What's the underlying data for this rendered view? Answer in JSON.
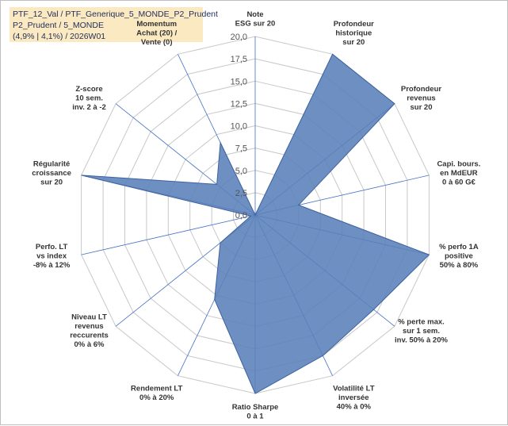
{
  "chart_data": {
    "type": "radar",
    "title_lines": [
      "PTF_12_Val / PTF_Generique_5_MONDE_P2_Prudent",
      "P2_Prudent / 5_MONDE",
      "(4,9% | 4,1%) / 2026W01"
    ],
    "axes": [
      {
        "lines": [
          "Note",
          "ESG sur 20"
        ],
        "highlight_first": false
      },
      {
        "lines": [
          "Profondeur",
          "historique",
          "sur 20"
        ],
        "highlight_first": false
      },
      {
        "lines": [
          "Profondeur",
          "revenus",
          "sur 20"
        ],
        "highlight_first": false
      },
      {
        "lines": [
          "Capi. bours.",
          "en MdEUR",
          "0 à 60 G€"
        ],
        "highlight_first": false
      },
      {
        "lines": [
          "% perfo 1A",
          "positive",
          "50% à 80%"
        ],
        "highlight_first": false
      },
      {
        "lines": [
          "% perte max.",
          "sur 1 sem.",
          "inv. 50% à 20%"
        ],
        "highlight_first": false
      },
      {
        "lines": [
          "Volatilité LT",
          "inversée",
          "40% à 0%"
        ],
        "highlight_first": false
      },
      {
        "lines": [
          "Ratio Sharpe",
          "0 à 1"
        ],
        "highlight_first": false
      },
      {
        "lines": [
          "Rendement LT",
          "0% à 20%"
        ],
        "highlight_first": false
      },
      {
        "lines": [
          "Niveau LT",
          "revenus",
          "reccurents",
          "0% à 6%"
        ],
        "highlight_first": false
      },
      {
        "lines": [
          "Perfo. LT",
          "vs index",
          "-8% à 12%"
        ],
        "highlight_first": false
      },
      {
        "lines": [
          "Régularité",
          "croissance",
          "sur 20"
        ],
        "highlight_first": false
      },
      {
        "lines": [
          "Z-score",
          "10 sem.",
          "inv. 2 à -2"
        ],
        "highlight_first": false
      },
      {
        "lines": [
          "Momentum",
          "Achat (20) /",
          "Vente (0)"
        ],
        "highlight_first": true
      }
    ],
    "values": [
      0,
      20,
      20,
      5,
      20,
      17,
      17.5,
      20,
      10.5,
      5,
      0.5,
      20,
      5.5,
      9
    ],
    "rlim": [
      0,
      20
    ],
    "ticks": [
      "0,0",
      "2,5",
      "5,0",
      "7,5",
      "10,0",
      "12,5",
      "15,0",
      "17,5",
      "20,0"
    ],
    "tick_values": [
      0,
      2.5,
      5,
      7.5,
      10,
      12.5,
      15,
      17.5,
      20
    ],
    "fill_color": "#5a80b8",
    "spoke_color": "#4472c4",
    "grid_color": "#c8c8c8",
    "highlight_color": "#9c8a55"
  }
}
